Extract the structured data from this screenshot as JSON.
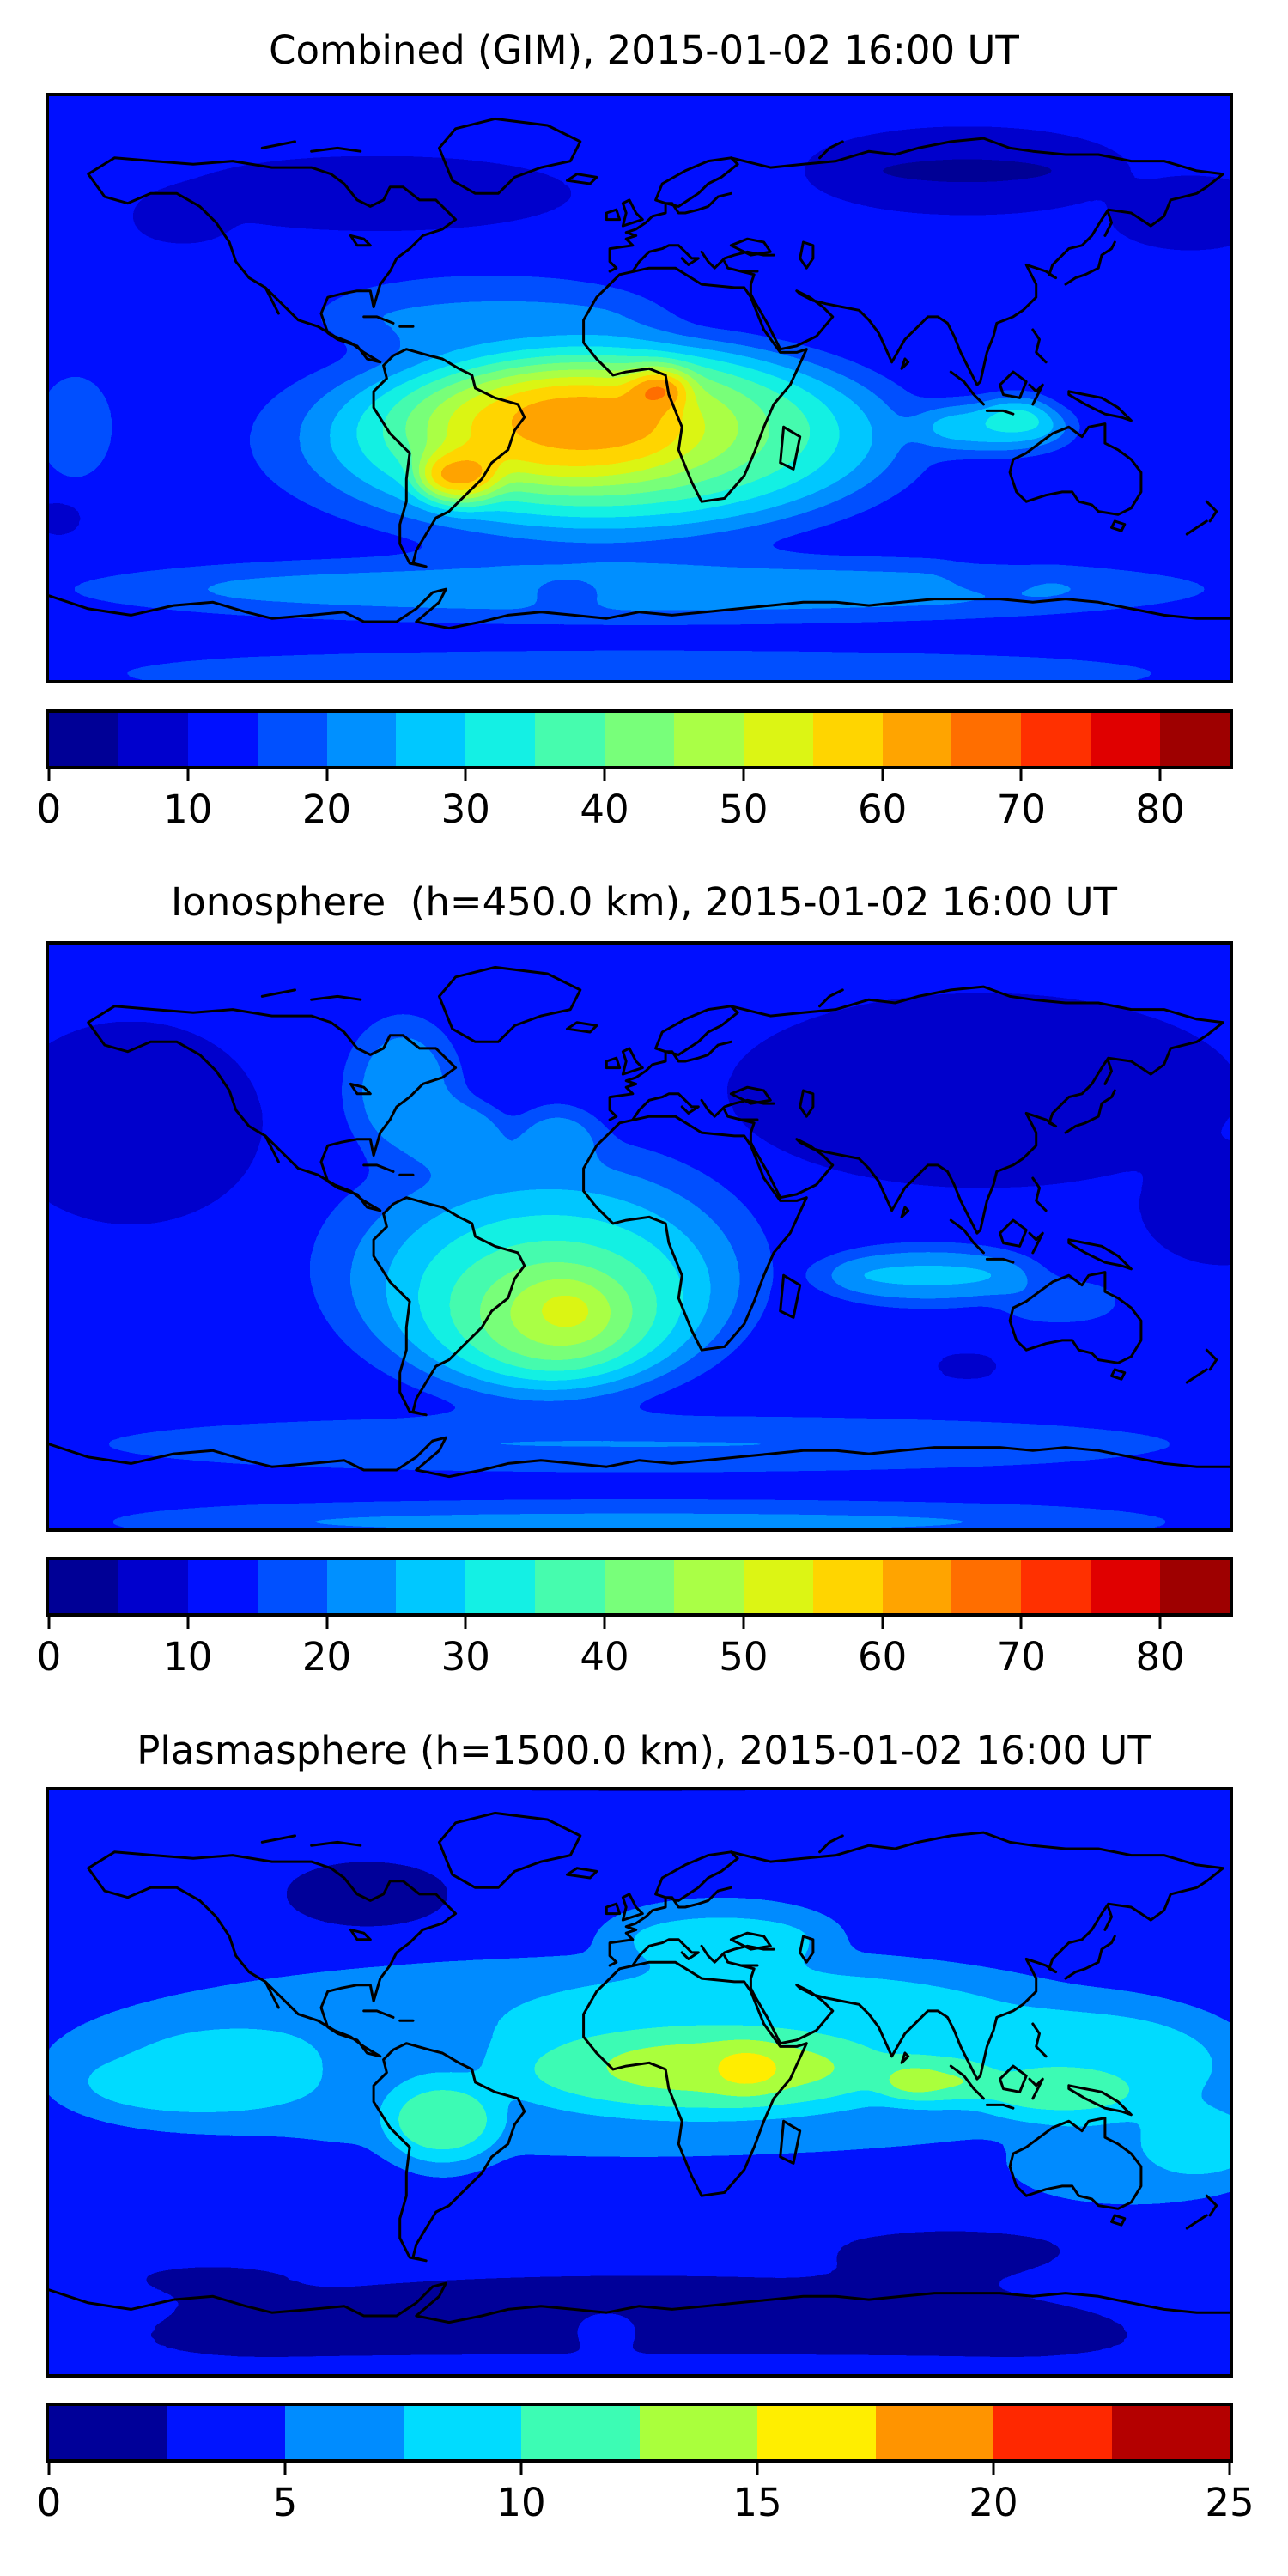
{
  "figure": {
    "background": "#ffffff",
    "frame_color": "#000000",
    "coastline_color": "#000000"
  },
  "chart_data": [
    {
      "type": "filled-contour-map",
      "title": "Combined (GIM), 2015-01-02 16:00 UT",
      "projection": "equirectangular",
      "lon_range": [
        -180,
        180
      ],
      "lat_range": [
        -90,
        90
      ],
      "value_range": [
        0,
        85
      ],
      "contour_interval": 5,
      "colormap": "jet",
      "grid": false,
      "legend_position": "bottom-colorbar",
      "band_colors": [
        "#000096",
        "#0000CD",
        "#0010FF",
        "#0050FF",
        "#0090FF",
        "#00C8FF",
        "#14F0E4",
        "#46FCAE",
        "#78FF7A",
        "#AAFF46",
        "#DCF514",
        "#FFD500",
        "#FFA400",
        "#FF6E00",
        "#FF3000",
        "#E00000",
        "#9E0000"
      ],
      "colorbar_ticks": [
        {
          "value": 0,
          "label": "0"
        },
        {
          "value": 10,
          "label": "10"
        },
        {
          "value": 20,
          "label": "20"
        },
        {
          "value": 30,
          "label": "30"
        },
        {
          "value": 40,
          "label": "40"
        },
        {
          "value": 50,
          "label": "50"
        },
        {
          "value": 60,
          "label": "60"
        },
        {
          "value": 70,
          "label": "70"
        },
        {
          "value": 80,
          "label": "80"
        }
      ],
      "base_value": 11,
      "peak": {
        "lon": 6,
        "lat": 0,
        "value": 69,
        "note": "max over west Africa / equatorial Atlantic"
      },
      "field_features": [
        {
          "lon": -80,
          "lat": 60,
          "rlon": 70,
          "rlat": 12,
          "value": 7
        },
        {
          "lon": 100,
          "lat": 67,
          "rlon": 55,
          "rlat": 13,
          "value": 4.5
        },
        {
          "lon": 168,
          "lat": 54,
          "rlon": 28,
          "rlat": 11,
          "value": 5.5
        },
        {
          "lon": -139,
          "lat": 53,
          "rlon": 17,
          "rlat": 7,
          "value": 5
        },
        {
          "lon": 0,
          "lat": -62,
          "rlon": 210,
          "rlat": 12,
          "value": 22
        },
        {
          "lon": 0,
          "lat": -88,
          "rlon": 210,
          "rlat": 8,
          "value": 20
        },
        {
          "lon": -22,
          "lat": -63,
          "rlon": 16,
          "rlat": 4,
          "value": 17
        },
        {
          "lon": 108,
          "lat": -58,
          "rlon": 18,
          "rlat": 5,
          "value": 17
        },
        {
          "lon": -177,
          "lat": -40,
          "rlon": 9,
          "rlat": 6,
          "value": 8
        },
        {
          "lon": -45,
          "lat": 22,
          "rlon": 65,
          "rlat": 15,
          "value": 20
        },
        {
          "lon": -172,
          "lat": -12,
          "rlon": 16,
          "rlat": 22,
          "value": 17
        },
        {
          "lon": -14,
          "lat": -16,
          "rlon": 118,
          "rlat": 40,
          "value": 25
        },
        {
          "lon": 108,
          "lat": -12,
          "rlon": 30,
          "rlat": 9,
          "value": 29
        },
        {
          "lon": -10,
          "lat": -14,
          "rlon": 95,
          "rlat": 33,
          "value": 33
        },
        {
          "lon": 115,
          "lat": -8,
          "rlon": 12,
          "rlat": 5,
          "value": 36
        },
        {
          "lon": -14,
          "lat": -13,
          "rlon": 76,
          "rlat": 27,
          "value": 42
        },
        {
          "lon": -18,
          "lat": -12,
          "rlon": 58,
          "rlat": 22,
          "value": 50
        },
        {
          "lon": -20,
          "lat": -12,
          "rlon": 43,
          "rlat": 17,
          "value": 58
        },
        {
          "lon": -16,
          "lat": -10,
          "rlon": 30,
          "rlat": 12,
          "value": 62
        },
        {
          "lon": -55,
          "lat": -27,
          "rlon": 15,
          "rlat": 9,
          "value": 63
        },
        {
          "lon": 6,
          "lat": 0,
          "rlon": 11,
          "rlat": 6,
          "value": 69
        }
      ]
    },
    {
      "type": "filled-contour-map",
      "title": "Ionosphere  (h=450.0 km), 2015-01-02 16:00 UT",
      "projection": "equirectangular",
      "lon_range": [
        -180,
        180
      ],
      "lat_range": [
        -90,
        90
      ],
      "value_range": [
        0,
        85
      ],
      "contour_interval": 5,
      "colormap": "jet",
      "grid": false,
      "legend_position": "bottom-colorbar",
      "band_colors": [
        "#000096",
        "#0000CD",
        "#0010FF",
        "#0050FF",
        "#0090FF",
        "#00C8FF",
        "#14F0E4",
        "#46FCAE",
        "#78FF7A",
        "#AAFF46",
        "#DCF514",
        "#FFD500",
        "#FFA400",
        "#FF6E00",
        "#FF3000",
        "#E00000",
        "#9E0000"
      ],
      "colorbar_ticks": [
        {
          "value": 0,
          "label": "0"
        },
        {
          "value": 10,
          "label": "10"
        },
        {
          "value": 20,
          "label": "20"
        },
        {
          "value": 30,
          "label": "30"
        },
        {
          "value": 40,
          "label": "40"
        },
        {
          "value": 50,
          "label": "50"
        },
        {
          "value": 60,
          "label": "60"
        },
        {
          "value": 70,
          "label": "70"
        },
        {
          "value": 80,
          "label": "80"
        }
      ],
      "base_value": 11,
      "peak": {
        "lon": -22,
        "lat": -23,
        "value": 53,
        "note": "max over south Atlantic east of Brazil"
      },
      "field_features": [
        {
          "lon": 105,
          "lat": 45,
          "rlon": 85,
          "rlat": 32,
          "value": 5
        },
        {
          "lon": 178,
          "lat": 10,
          "rlon": 28,
          "rlat": 20,
          "value": 6
        },
        {
          "lon": -155,
          "lat": 35,
          "rlon": 45,
          "rlat": 35,
          "value": 6.5
        },
        {
          "lon": -72,
          "lat": 45,
          "rlon": 22,
          "rlat": 28,
          "value": 21
        },
        {
          "lon": -55,
          "lat": 30,
          "rlon": 18,
          "rlat": 14,
          "value": 25
        },
        {
          "lon": 0,
          "lat": -64,
          "rlon": 210,
          "rlat": 10,
          "value": 20
        },
        {
          "lon": 0,
          "lat": -88,
          "rlon": 210,
          "rlat": 7,
          "value": 22
        },
        {
          "lon": 100,
          "lat": -40,
          "rlon": 16,
          "rlat": 6,
          "value": 9
        },
        {
          "lon": -25,
          "lat": 28,
          "rlon": 17,
          "rlat": 14,
          "value": 24
        },
        {
          "lon": -30,
          "lat": -10,
          "rlon": 85,
          "rlat": 50,
          "value": 20
        },
        {
          "lon": 88,
          "lat": -12,
          "rlon": 42,
          "rlat": 10,
          "value": 26
        },
        {
          "lon": 128,
          "lat": -20,
          "rlon": 24,
          "rlat": 8,
          "value": 19
        },
        {
          "lon": -28,
          "lat": -15,
          "rlon": 66,
          "rlat": 40,
          "value": 27
        },
        {
          "lon": -27,
          "lat": -19,
          "rlon": 51,
          "rlat": 32,
          "value": 33
        },
        {
          "lon": -26,
          "lat": -22,
          "rlon": 38,
          "rlat": 24,
          "value": 39
        },
        {
          "lon": -25,
          "lat": -24,
          "rlon": 26,
          "rlat": 17,
          "value": 45
        },
        {
          "lon": -23,
          "lat": -23,
          "rlon": 15,
          "rlat": 10,
          "value": 50
        },
        {
          "lon": -22,
          "lat": -23,
          "rlon": 8,
          "rlat": 5,
          "value": 53
        }
      ]
    },
    {
      "type": "filled-contour-map",
      "title": "Plasmasphere (h=1500.0 km), 2015-01-02 16:00 UT",
      "projection": "equirectangular",
      "lon_range": [
        -180,
        180
      ],
      "lat_range": [
        -90,
        90
      ],
      "value_range": [
        0,
        25
      ],
      "contour_interval": 2.5,
      "colormap": "jet",
      "grid": false,
      "legend_position": "bottom-colorbar",
      "band_colors": [
        "#000099",
        "#0014FF",
        "#008CFF",
        "#00DCFF",
        "#3CFCB4",
        "#AAFF3C",
        "#FFEE00",
        "#FF9400",
        "#FF2800",
        "#B40000"
      ],
      "colorbar_ticks": [
        {
          "value": 0,
          "label": "0"
        },
        {
          "value": 5,
          "label": "5"
        },
        {
          "value": 10,
          "label": "10"
        },
        {
          "value": 15,
          "label": "15"
        },
        {
          "value": 20,
          "label": "20"
        },
        {
          "value": 25,
          "label": "25"
        }
      ],
      "base_value": 4.2,
      "peak": {
        "lon": 33,
        "lat": 4,
        "value": 16.3,
        "note": "max over central-east Africa"
      },
      "field_features": [
        {
          "lon": 0,
          "lat": 96,
          "rlon": 210,
          "rlat": 11,
          "value": 2
        },
        {
          "lon": -83,
          "lat": 58,
          "rlon": 36,
          "rlat": 15,
          "value": 1.8
        },
        {
          "lon": 0,
          "lat": -78,
          "rlon": 210,
          "rlat": 26,
          "value": 1.8
        },
        {
          "lon": 95,
          "lat": -52,
          "rlon": 55,
          "rlat": 12,
          "value": 2.2
        },
        {
          "lon": -130,
          "lat": -60,
          "rlon": 40,
          "rlat": 10,
          "value": 2.4
        },
        {
          "lon": 0,
          "lat": 8,
          "rlon": 210,
          "rlat": 36,
          "value": 6.3
        },
        {
          "lon": 150,
          "lat": -25,
          "rlon": 45,
          "rlat": 14,
          "value": 6.4
        },
        {
          "lon": -135,
          "lat": 0,
          "rlon": 48,
          "rlat": 14,
          "value": 8.6
        },
        {
          "lon": -125,
          "lat": 8,
          "rlon": 36,
          "rlat": 12,
          "value": 8.5
        },
        {
          "lon": 40,
          "lat": 16,
          "rlon": 105,
          "rlat": 24,
          "value": 8.8
        },
        {
          "lon": 135,
          "lat": 5,
          "rlon": 55,
          "rlat": 22,
          "value": 8.8
        },
        {
          "lon": 172,
          "lat": -18,
          "rlon": 25,
          "rlat": 14,
          "value": 8.6
        },
        {
          "lon": 25,
          "lat": 44,
          "rlon": 42,
          "rlat": 12,
          "value": 8.4
        },
        {
          "lon": 20,
          "lat": 3,
          "rlon": 75,
          "rlat": 16,
          "value": 11.2
        },
        {
          "lon": 128,
          "lat": -3,
          "rlon": 30,
          "rlat": 10,
          "value": 11
        },
        {
          "lon": -60,
          "lat": -12,
          "rlon": 22,
          "rlat": 16,
          "value": 11
        },
        {
          "lon": 25,
          "lat": 5,
          "rlon": 48,
          "rlat": 11,
          "value": 13.6
        },
        {
          "lon": 90,
          "lat": 0,
          "rlon": 22,
          "rlat": 7,
          "value": 13.4
        },
        {
          "lon": 33,
          "lat": 4,
          "rlon": 13,
          "rlat": 8,
          "value": 16.3
        },
        {
          "lon": 83,
          "lat": 0,
          "rlon": 9,
          "rlat": 4,
          "value": 15.8
        },
        {
          "lon": -10,
          "lat": -77,
          "rlon": 11,
          "rlat": 5,
          "value": 4.4
        },
        {
          "lon": 0,
          "lat": -89,
          "rlon": 210,
          "rlat": 4,
          "value": 4.4
        }
      ]
    }
  ]
}
